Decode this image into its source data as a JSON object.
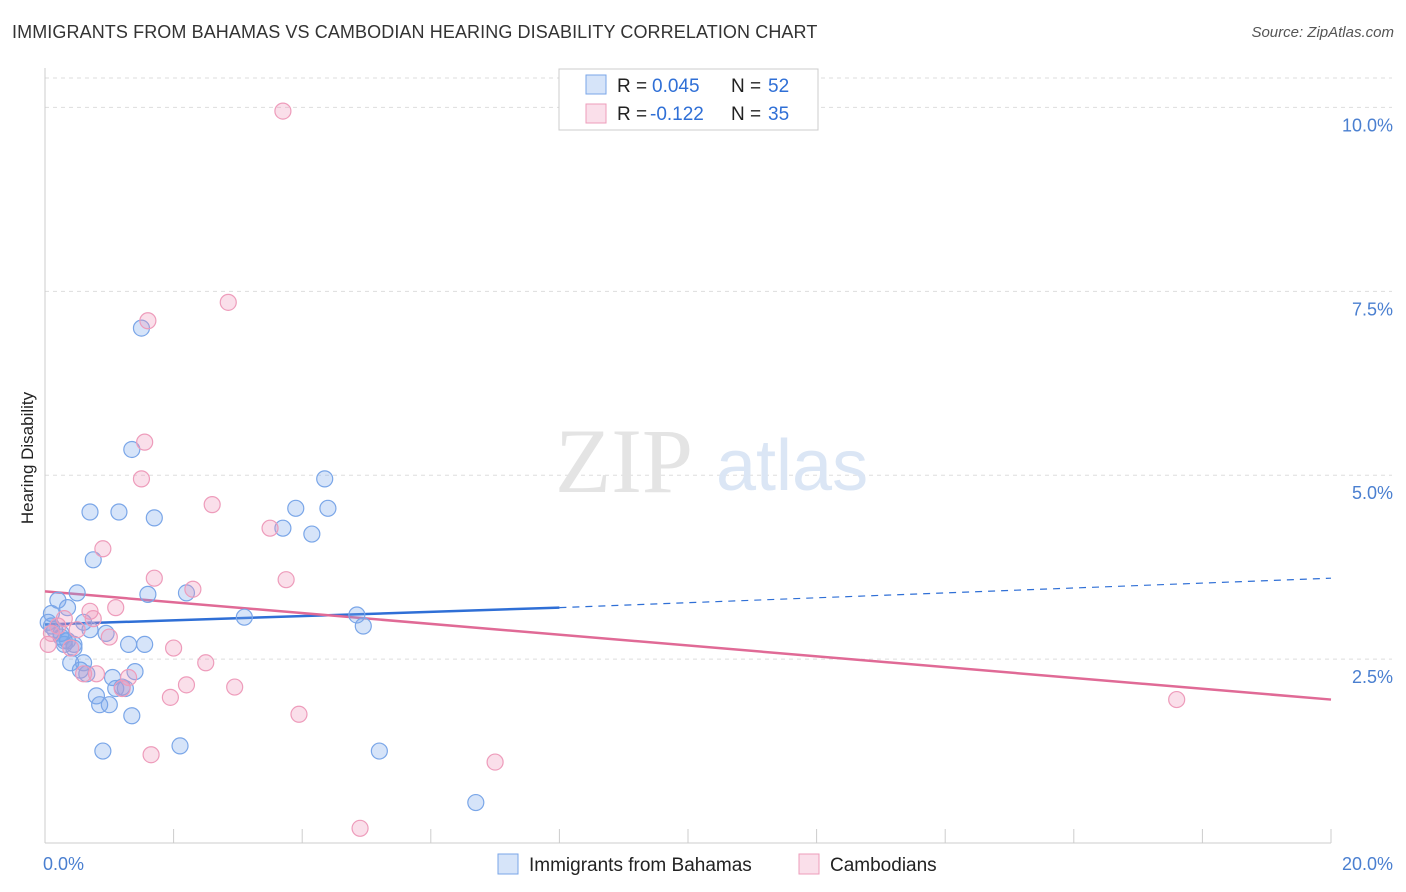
{
  "title": "IMMIGRANTS FROM BAHAMAS VS CAMBODIAN HEARING DISABILITY CORRELATION CHART",
  "source": "Source: ZipAtlas.com",
  "watermark": {
    "zip": "ZIP",
    "atlas": "atlas"
  },
  "colors": {
    "blue_fill": "rgba(120,165,235,0.30)",
    "blue_stroke": "#7aa6e8",
    "blue_line": "#2f6fd6",
    "pink_fill": "rgba(240,150,185,0.30)",
    "pink_stroke": "#ee9cbb",
    "pink_line": "#e06a96",
    "grid": "#dddddd",
    "tick_text": "#4a7fd0"
  },
  "legend": {
    "r_label": "R =",
    "n_label": "N =",
    "rows": [
      {
        "r": "0.045",
        "n": "52"
      },
      {
        "r": "-0.122",
        "n": "35"
      }
    ]
  },
  "chart_data": {
    "type": "scatter",
    "title": "IMMIGRANTS FROM BAHAMAS VS CAMBODIAN HEARING DISABILITY CORRELATION CHART",
    "xlabel": "",
    "ylabel": "Hearing Disability",
    "xlim": [
      0,
      20
    ],
    "ylim": [
      0,
      10.4
    ],
    "x_tick_labels": {
      "min": "0.0%",
      "max": "20.0%"
    },
    "y_ticks": [
      {
        "value": 2.5,
        "label": "2.5%"
      },
      {
        "value": 5.0,
        "label": "5.0%"
      },
      {
        "value": 7.5,
        "label": "7.5%"
      },
      {
        "value": 10.0,
        "label": "10.0%"
      }
    ],
    "series": [
      {
        "name": "Immigrants from Bahamas",
        "color": "blue",
        "trend": {
          "x0": 0,
          "y0": 2.97,
          "x_solid_end": 8.0,
          "y_solid_end": 3.2,
          "x1": 20,
          "y1": 3.6
        },
        "points": [
          [
            0.1,
            2.95
          ],
          [
            0.1,
            3.12
          ],
          [
            0.15,
            2.9
          ],
          [
            0.2,
            3.3
          ],
          [
            0.25,
            2.8
          ],
          [
            0.3,
            2.7
          ],
          [
            0.35,
            2.75
          ],
          [
            0.35,
            3.2
          ],
          [
            0.4,
            2.45
          ],
          [
            0.45,
            2.65
          ],
          [
            0.5,
            3.4
          ],
          [
            0.55,
            2.35
          ],
          [
            0.6,
            3.0
          ],
          [
            0.6,
            2.45
          ],
          [
            0.65,
            2.3
          ],
          [
            0.7,
            4.5
          ],
          [
            0.7,
            2.9
          ],
          [
            0.75,
            3.85
          ],
          [
            0.8,
            2.0
          ],
          [
            0.85,
            1.88
          ],
          [
            0.9,
            1.25
          ],
          [
            0.95,
            2.85
          ],
          [
            1.0,
            1.88
          ],
          [
            1.05,
            2.25
          ],
          [
            1.1,
            2.1
          ],
          [
            1.15,
            4.5
          ],
          [
            1.2,
            2.12
          ],
          [
            1.25,
            2.1
          ],
          [
            1.3,
            2.7
          ],
          [
            1.35,
            5.35
          ],
          [
            1.35,
            1.73
          ],
          [
            1.4,
            2.33
          ],
          [
            1.5,
            7.0
          ],
          [
            1.55,
            2.7
          ],
          [
            1.6,
            3.38
          ],
          [
            1.7,
            4.42
          ],
          [
            2.1,
            1.32
          ],
          [
            2.2,
            3.4
          ],
          [
            3.1,
            3.07
          ],
          [
            3.7,
            4.28
          ],
          [
            3.9,
            4.55
          ],
          [
            4.15,
            4.2
          ],
          [
            4.35,
            4.95
          ],
          [
            4.4,
            4.55
          ],
          [
            4.85,
            3.1
          ],
          [
            4.95,
            2.95
          ],
          [
            5.2,
            1.25
          ],
          [
            6.7,
            0.55
          ],
          [
            0.05,
            3.0
          ],
          [
            0.3,
            2.75
          ],
          [
            0.45,
            2.7
          ],
          [
            0.25,
            2.85
          ]
        ]
      },
      {
        "name": "Cambodians",
        "color": "pink",
        "trend": {
          "x0": 0,
          "y0": 3.42,
          "x1": 20,
          "y1": 1.95
        },
        "points": [
          [
            0.05,
            2.7
          ],
          [
            0.1,
            2.85
          ],
          [
            0.2,
            2.95
          ],
          [
            0.3,
            3.05
          ],
          [
            0.4,
            2.65
          ],
          [
            0.5,
            2.9
          ],
          [
            0.6,
            2.3
          ],
          [
            0.7,
            3.15
          ],
          [
            0.75,
            3.05
          ],
          [
            0.8,
            2.3
          ],
          [
            0.9,
            4.0
          ],
          [
            1.0,
            2.8
          ],
          [
            1.1,
            3.2
          ],
          [
            1.2,
            2.1
          ],
          [
            1.3,
            2.25
          ],
          [
            1.5,
            4.95
          ],
          [
            1.55,
            5.45
          ],
          [
            1.6,
            7.1
          ],
          [
            1.65,
            1.2
          ],
          [
            1.7,
            3.6
          ],
          [
            1.95,
            1.98
          ],
          [
            2.0,
            2.65
          ],
          [
            2.2,
            2.15
          ],
          [
            2.3,
            3.45
          ],
          [
            2.5,
            2.45
          ],
          [
            2.6,
            4.6
          ],
          [
            2.85,
            7.35
          ],
          [
            2.95,
            2.12
          ],
          [
            3.5,
            4.28
          ],
          [
            3.7,
            9.95
          ],
          [
            3.75,
            3.58
          ],
          [
            3.95,
            1.75
          ],
          [
            4.9,
            0.2
          ],
          [
            7.0,
            1.1
          ],
          [
            17.6,
            1.95
          ]
        ]
      }
    ]
  }
}
